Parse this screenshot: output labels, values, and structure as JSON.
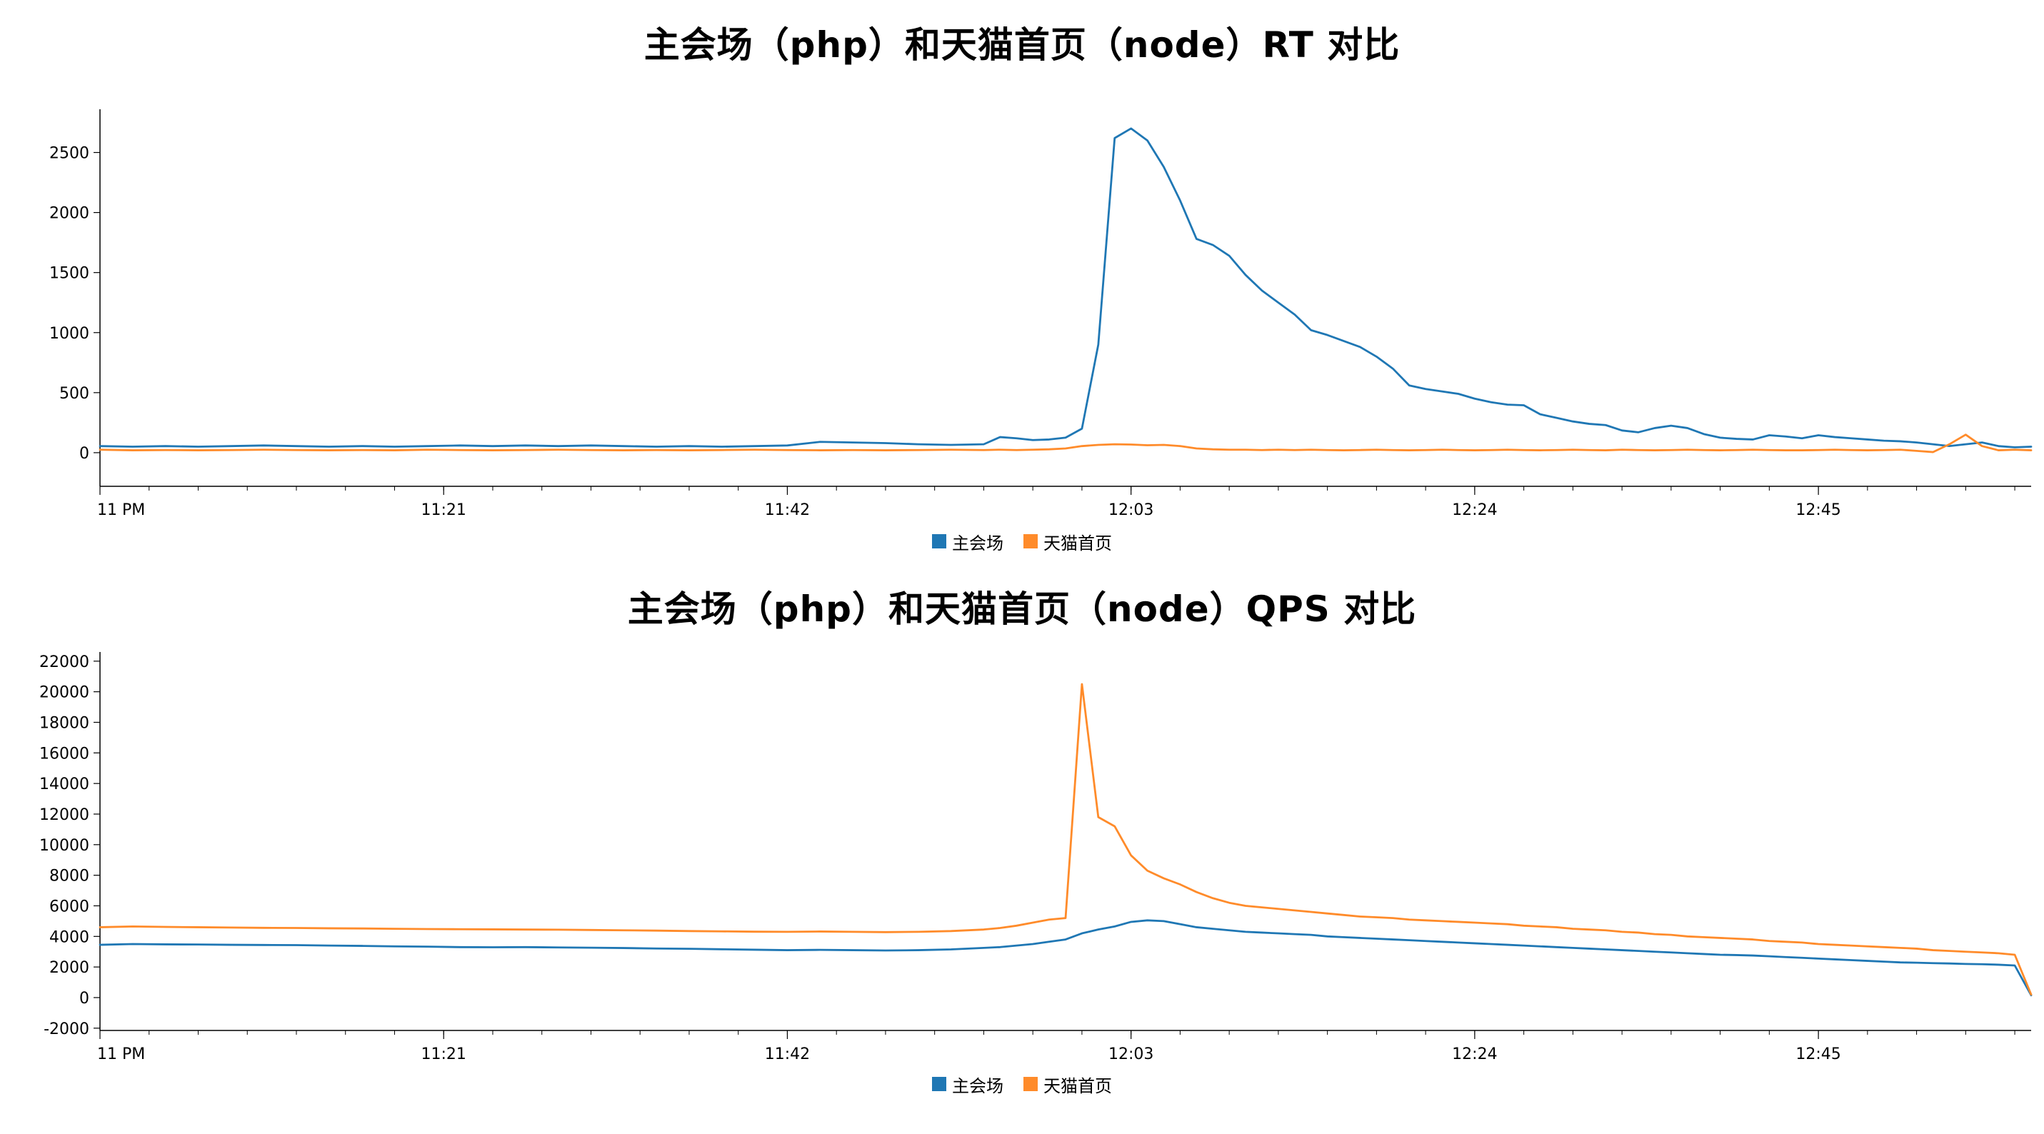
{
  "page": {
    "background": "#ffffff"
  },
  "chart_data": [
    {
      "type": "line",
      "title": "主会场（php）和天猫首页（node）RT 对比",
      "xlabel": "",
      "ylabel": "",
      "legend_position": "bottom",
      "grid": false,
      "x_unit": "minutes after 11 PM",
      "x_range": [
        0,
        118
      ],
      "y_range": [
        -280,
        2860
      ],
      "y_ticks": [
        0,
        500,
        1000,
        1500,
        2000,
        2500
      ],
      "x_ticks": [
        {
          "t": 0,
          "label": "11 PM"
        },
        {
          "t": 21,
          "label": "11:21"
        },
        {
          "t": 42,
          "label": "11:42"
        },
        {
          "t": 63,
          "label": "12:03"
        },
        {
          "t": 84,
          "label": "12:24"
        },
        {
          "t": 105,
          "label": "12:45"
        }
      ],
      "x": [
        0,
        2,
        4,
        6,
        8,
        10,
        12,
        14,
        16,
        18,
        20,
        22,
        24,
        26,
        28,
        30,
        32,
        34,
        36,
        38,
        40,
        42,
        44,
        46,
        48,
        50,
        52,
        54,
        55,
        56,
        57,
        58,
        59,
        60,
        61,
        62,
        63,
        64,
        65,
        66,
        67,
        68,
        69,
        70,
        71,
        72,
        73,
        74,
        75,
        76,
        77,
        78,
        79,
        80,
        81,
        82,
        83,
        84,
        85,
        86,
        87,
        88,
        89,
        90,
        91,
        92,
        93,
        94,
        95,
        96,
        97,
        98,
        99,
        100,
        101,
        102,
        103,
        104,
        105,
        106,
        107,
        108,
        109,
        110,
        111,
        112,
        113,
        114,
        115,
        116,
        117,
        118
      ],
      "series": [
        {
          "name": "主会场",
          "color": "#1f77b4",
          "values": [
            55,
            50,
            55,
            50,
            55,
            60,
            55,
            50,
            55,
            50,
            55,
            60,
            55,
            60,
            55,
            60,
            55,
            50,
            55,
            50,
            55,
            60,
            90,
            85,
            80,
            70,
            65,
            70,
            130,
            120,
            105,
            110,
            125,
            200,
            900,
            2620,
            2700,
            2600,
            2380,
            2100,
            1780,
            1730,
            1640,
            1480,
            1350,
            1250,
            1150,
            1020,
            980,
            930,
            880,
            800,
            700,
            560,
            530,
            510,
            490,
            450,
            420,
            400,
            395,
            320,
            290,
            260,
            240,
            230,
            185,
            170,
            205,
            225,
            205,
            155,
            125,
            115,
            110,
            145,
            135,
            120,
            145,
            130,
            120,
            110,
            100,
            95,
            85,
            70,
            55,
            70,
            85,
            55,
            45,
            50
          ]
        },
        {
          "name": "天猫首页",
          "color": "#ff8b2a",
          "values": [
            25,
            20,
            22,
            20,
            22,
            25,
            22,
            20,
            22,
            20,
            25,
            22,
            20,
            22,
            25,
            22,
            20,
            22,
            20,
            22,
            25,
            22,
            20,
            22,
            20,
            22,
            25,
            22,
            25,
            22,
            25,
            28,
            35,
            55,
            65,
            70,
            68,
            62,
            65,
            55,
            35,
            28,
            25,
            25,
            22,
            25,
            22,
            25,
            22,
            20,
            22,
            25,
            22,
            20,
            22,
            25,
            22,
            20,
            22,
            25,
            22,
            20,
            22,
            25,
            22,
            20,
            25,
            22,
            20,
            22,
            25,
            22,
            20,
            22,
            25,
            22,
            20,
            20,
            22,
            25,
            22,
            20,
            22,
            25,
            15,
            5,
            70,
            150,
            55,
            20,
            25,
            20
          ]
        }
      ]
    },
    {
      "type": "line",
      "title": "主会场（php）和天猫首页（node）QPS 对比",
      "xlabel": "",
      "ylabel": "",
      "legend_position": "bottom",
      "grid": false,
      "x_unit": "minutes after 11 PM",
      "x_range": [
        0,
        118
      ],
      "y_range": [
        -2150,
        22600
      ],
      "y_ticks": [
        -2000,
        0,
        2000,
        4000,
        6000,
        8000,
        10000,
        12000,
        14000,
        16000,
        18000,
        20000,
        22000
      ],
      "x_ticks": [
        {
          "t": 0,
          "label": "11 PM"
        },
        {
          "t": 21,
          "label": "11:21"
        },
        {
          "t": 42,
          "label": "11:42"
        },
        {
          "t": 63,
          "label": "12:03"
        },
        {
          "t": 84,
          "label": "12:24"
        },
        {
          "t": 105,
          "label": "12:45"
        }
      ],
      "x": [
        0,
        2,
        4,
        6,
        8,
        10,
        12,
        14,
        16,
        18,
        20,
        22,
        24,
        26,
        28,
        30,
        32,
        34,
        36,
        38,
        40,
        42,
        44,
        46,
        48,
        50,
        52,
        54,
        55,
        56,
        57,
        58,
        59,
        60,
        61,
        62,
        63,
        64,
        65,
        66,
        67,
        68,
        69,
        70,
        71,
        72,
        73,
        74,
        75,
        76,
        77,
        78,
        79,
        80,
        81,
        82,
        83,
        84,
        85,
        86,
        87,
        88,
        89,
        90,
        91,
        92,
        93,
        94,
        95,
        96,
        97,
        98,
        99,
        100,
        101,
        102,
        103,
        104,
        105,
        106,
        107,
        108,
        109,
        110,
        111,
        112,
        113,
        114,
        115,
        116,
        117,
        118
      ],
      "series": [
        {
          "name": "主会场",
          "color": "#1f77b4",
          "values": [
            3450,
            3500,
            3480,
            3470,
            3450,
            3440,
            3430,
            3400,
            3380,
            3350,
            3330,
            3300,
            3290,
            3300,
            3280,
            3260,
            3240,
            3210,
            3190,
            3160,
            3130,
            3100,
            3120,
            3100,
            3080,
            3100,
            3150,
            3250,
            3300,
            3400,
            3500,
            3650,
            3800,
            4200,
            4450,
            4650,
            4950,
            5050,
            5000,
            4800,
            4600,
            4500,
            4400,
            4300,
            4250,
            4200,
            4150,
            4100,
            4000,
            3950,
            3900,
            3850,
            3800,
            3750,
            3700,
            3650,
            3600,
            3550,
            3500,
            3450,
            3400,
            3350,
            3300,
            3250,
            3200,
            3150,
            3100,
            3050,
            3000,
            2950,
            2900,
            2850,
            2800,
            2780,
            2750,
            2700,
            2650,
            2600,
            2550,
            2500,
            2450,
            2400,
            2350,
            2300,
            2280,
            2250,
            2230,
            2200,
            2180,
            2150,
            2100,
            150
          ]
        },
        {
          "name": "天猫首页",
          "color": "#ff8b2a",
          "values": [
            4600,
            4650,
            4620,
            4600,
            4580,
            4560,
            4550,
            4530,
            4520,
            4500,
            4480,
            4470,
            4460,
            4450,
            4440,
            4420,
            4400,
            4380,
            4350,
            4330,
            4310,
            4300,
            4320,
            4300,
            4280,
            4300,
            4350,
            4450,
            4550,
            4700,
            4900,
            5100,
            5200,
            20500,
            11800,
            11200,
            9300,
            8300,
            7800,
            7400,
            6900,
            6500,
            6200,
            6000,
            5900,
            5800,
            5700,
            5600,
            5500,
            5400,
            5300,
            5250,
            5200,
            5100,
            5050,
            5000,
            4950,
            4900,
            4850,
            4800,
            4700,
            4650,
            4600,
            4500,
            4450,
            4400,
            4300,
            4250,
            4150,
            4100,
            4000,
            3950,
            3900,
            3850,
            3800,
            3700,
            3650,
            3600,
            3500,
            3450,
            3400,
            3350,
            3300,
            3250,
            3200,
            3100,
            3050,
            3000,
            2950,
            2900,
            2800,
            200
          ]
        }
      ]
    }
  ]
}
